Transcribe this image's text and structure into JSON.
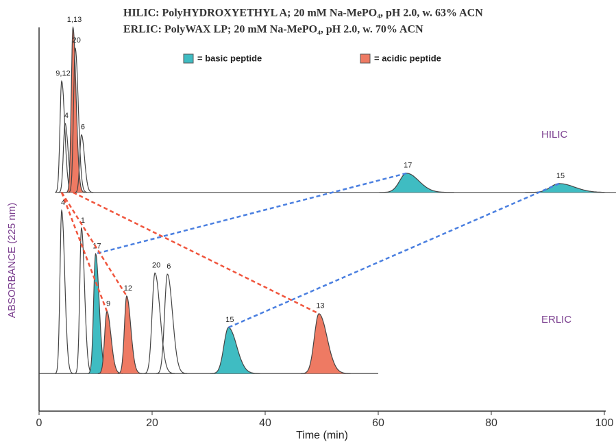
{
  "chart_data": {
    "type": "chromatogram",
    "titles": [
      "HILIC:  PolyHYDROXYETHYL A; 20 mM Na-MePO₄, pH 2.0, w. 63% ACN",
      "ERLIC:  PolyWAX LP; 20 mM Na-MePO₄, pH 2.0, w. 70% ACN"
    ],
    "legend": [
      {
        "name": "= basic peptide",
        "color": "#3fbcc2"
      },
      {
        "name": "= acidic peptide",
        "color": "#ee7a63"
      }
    ],
    "xlabel": "Time (min)",
    "ylabel": "ABSORBANCE (225 nm)",
    "xlim": [
      0,
      100
    ],
    "xticks": [
      0,
      20,
      40,
      60,
      80,
      100
    ],
    "ylim": [
      0,
      100
    ],
    "traces": [
      {
        "name": "HILIC",
        "baseline": 57,
        "span": [
          3,
          100
        ],
        "peaks": [
          {
            "label": "9,12",
            "time": 4.0,
            "apex": 86,
            "width": 0.3
          },
          {
            "label": "4",
            "time": 4.6,
            "apex": 75,
            "width": 0.3
          },
          {
            "label": "1,13",
            "time": 6.0,
            "apex": 100,
            "width": 0.3,
            "color": "#ee7a63"
          },
          {
            "label": "20",
            "time": 6.4,
            "apex": 94.6,
            "width": 0.3
          },
          {
            "label": "6",
            "time": 7.5,
            "apex": 72,
            "width": 0.3
          },
          {
            "label": "17",
            "time": 65,
            "apex": 62,
            "width": 1.2,
            "color": "#3fbcc2"
          },
          {
            "label": "15",
            "time": 92,
            "apex": 59.3,
            "width": 1.5,
            "color": "#3fbcc2"
          }
        ]
      },
      {
        "name": "ERLIC",
        "baseline": 9.8,
        "span": [
          0,
          60
        ],
        "peaks": [
          {
            "label": "4",
            "time": 4.0,
            "apex": 52.3,
            "width": 0.3
          },
          {
            "label": "1",
            "time": 7.5,
            "apex": 47.7,
            "width": 0.3
          },
          {
            "label": "17",
            "time": 10.0,
            "apex": 41,
            "width": 0.35,
            "color": "#3fbcc2"
          },
          {
            "label": "9",
            "time": 12.0,
            "apex": 26,
            "width": 0.4,
            "color": "#ee7a63"
          },
          {
            "label": "12",
            "time": 15.5,
            "apex": 30,
            "width": 0.4,
            "color": "#ee7a63"
          },
          {
            "label": "20",
            "time": 20.5,
            "apex": 36,
            "width": 0.5
          },
          {
            "label": "6",
            "time": 22.7,
            "apex": 35.7,
            "width": 0.5
          },
          {
            "label": "15",
            "time": 33.5,
            "apex": 21.8,
            "width": 0.8,
            "color": "#3fbcc2"
          },
          {
            "label": "13",
            "time": 49.5,
            "apex": 25.4,
            "width": 0.8,
            "color": "#ee7a63"
          }
        ]
      }
    ]
  }
}
